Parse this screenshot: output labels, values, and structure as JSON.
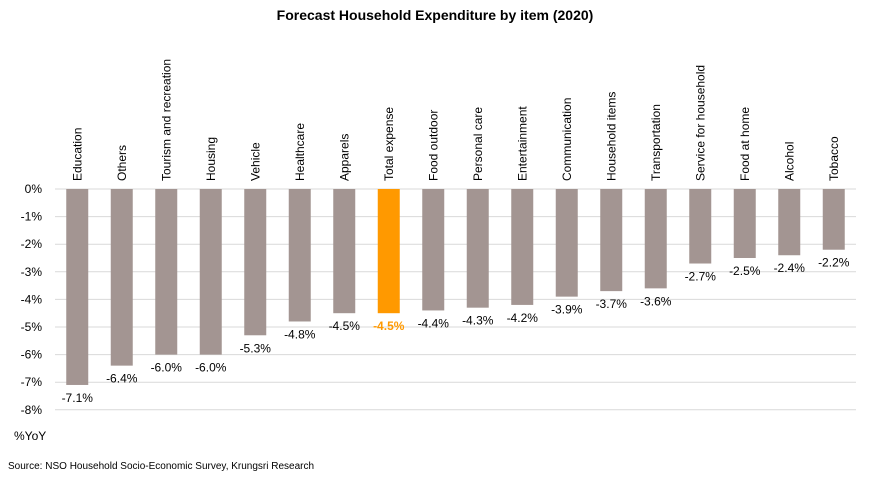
{
  "chart_data": {
    "type": "bar",
    "title": "Forecast Household Expenditure by item (2020)",
    "categories": [
      "Education",
      "Others",
      "Tourism and recreation",
      "Housing",
      "Vehicle",
      "Healthcare",
      "Apparels",
      "Total expense",
      "Food outdoor",
      "Personal care",
      "Entertainment",
      "Communication",
      "Household items",
      "Transportation",
      "Service for household",
      "Food at home",
      "Alcohol",
      "Tobacco"
    ],
    "values": [
      -7.1,
      -6.4,
      -6.0,
      -6.0,
      -5.3,
      -4.8,
      -4.5,
      -4.5,
      -4.4,
      -4.3,
      -4.2,
      -3.9,
      -3.7,
      -3.6,
      -2.7,
      -2.5,
      -2.4,
      -2.2
    ],
    "value_labels": [
      "-7.1%",
      "-6.4%",
      "-6.0%",
      "-6.0%",
      "-5.3%",
      "-4.8%",
      "-4.5%",
      "-4.5%",
      "-4.4%",
      "-4.3%",
      "-4.2%",
      "-3.9%",
      "-3.7%",
      "-3.6%",
      "-2.7%",
      "-2.5%",
      "-2.4%",
      "-2.2%"
    ],
    "highlight_category": "Total expense",
    "y_ticks": [
      "0%",
      "-1%",
      "-2%",
      "-3%",
      "-4%",
      "-5%",
      "-6%",
      "-7%",
      "-8%"
    ],
    "ylim": [
      -8,
      0
    ],
    "ylabel": "%YoY",
    "grid": true,
    "colors": {
      "bar": "#A39592",
      "highlight": "#FF9900",
      "grid": "#D9D9D9"
    }
  },
  "source": "Source: NSO Household Socio-Economic Survey, Krungsri Research"
}
